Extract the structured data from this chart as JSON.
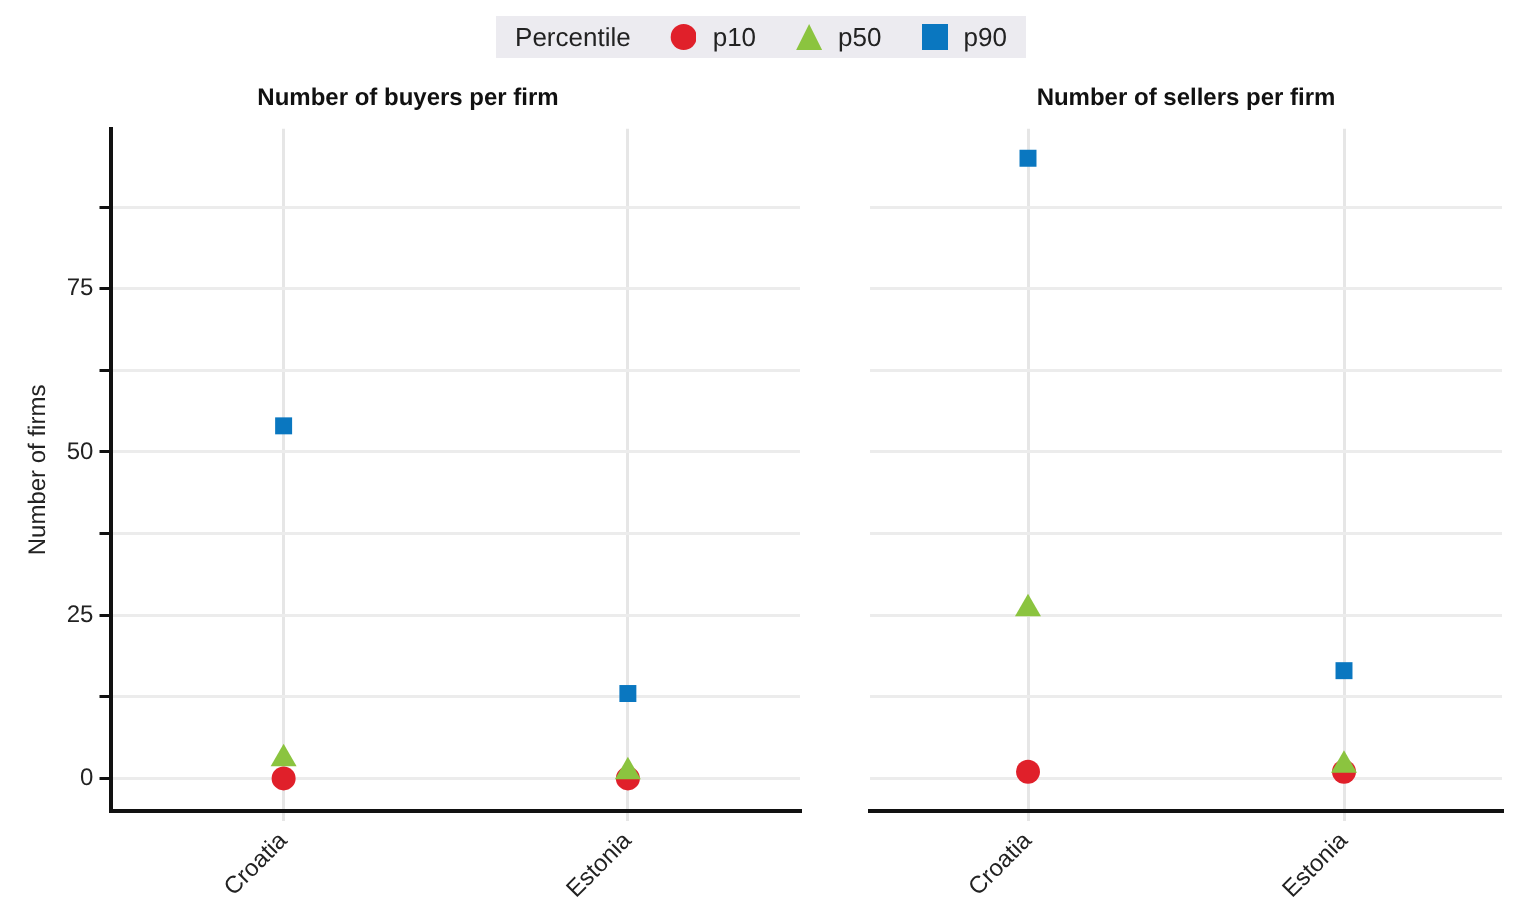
{
  "chart_data": [
    {
      "type": "scatter",
      "title": "Number of buyers per firm",
      "ylabel": "Number of firms",
      "legend_title": "Percentile",
      "legend": "top",
      "categories": [
        "Croatia",
        "Estonia"
      ],
      "series": [
        {
          "name": "p10",
          "color": "#e0202a",
          "marker": "circle",
          "values": [
            0,
            0
          ]
        },
        {
          "name": "p50",
          "color": "#8bc43f",
          "marker": "triangle",
          "values": [
            3,
            1
          ]
        },
        {
          "name": "p90",
          "color": "#0a77c0",
          "marker": "square",
          "values": [
            54,
            13
          ]
        }
      ],
      "ylim": [
        -5,
        99.5
      ],
      "yticks": [
        0,
        {
          "value": 12.5,
          "label": null
        },
        25,
        {
          "value": 37.5,
          "label": null
        },
        50,
        {
          "value": 62.5,
          "label": null
        },
        75,
        {
          "value": 87.5,
          "label": null
        }
      ],
      "grid": true
    },
    {
      "type": "scatter",
      "title": "Number of sellers per firm",
      "categories": [
        "Croatia",
        "Estonia"
      ],
      "series": [
        {
          "name": "p10",
          "color": "#e0202a",
          "marker": "circle",
          "values": [
            1,
            1
          ]
        },
        {
          "name": "p50",
          "color": "#8bc43f",
          "marker": "triangle",
          "values": [
            26,
            2
          ]
        },
        {
          "name": "p90",
          "color": "#0a77c0",
          "marker": "square",
          "values": [
            95,
            16.5
          ]
        }
      ],
      "ylim": [
        -5,
        99.5
      ],
      "yticks": [
        0,
        {
          "value": 12.5,
          "label": null
        },
        25,
        {
          "value": 37.5,
          "label": null
        },
        50,
        {
          "value": 62.5,
          "label": null
        },
        75,
        {
          "value": 87.5,
          "label": null
        }
      ],
      "grid": true,
      "tick_labels": "x"
    }
  ]
}
